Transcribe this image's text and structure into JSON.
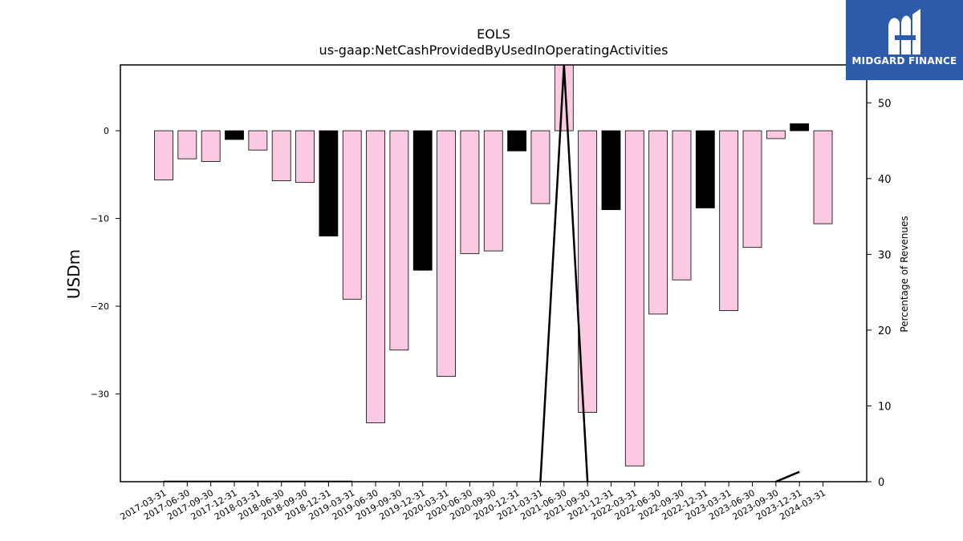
{
  "brand": {
    "name": "MIDGARD FINANCE",
    "logo_icon": "midgard-m-logo-icon",
    "background": "#2d5aab"
  },
  "chart_data": {
    "type": "bar",
    "title": "EOLS",
    "subtitle": "us-gaap:NetCashProvidedByUsedInOperatingActivities",
    "ylabel": "USDm",
    "y2label": "Percentage of Revenues",
    "ylim": [
      -40,
      7.5
    ],
    "y2lim": [
      0,
      55
    ],
    "yticks": [
      0,
      -10,
      -20,
      -30
    ],
    "y2ticks": [
      0,
      10,
      20,
      30,
      40,
      50
    ],
    "grid": false,
    "categories": [
      "2017-03-31",
      "2017-06-30",
      "2017-09-30",
      "2017-12-31",
      "2018-03-31",
      "2018-06-30",
      "2018-09-30",
      "2018-12-31",
      "2019-03-31",
      "2019-06-30",
      "2019-09-30",
      "2019-12-31",
      "2020-03-31",
      "2020-06-30",
      "2020-09-30",
      "2020-12-31",
      "2021-03-31",
      "2021-06-30",
      "2021-09-30",
      "2021-12-31",
      "2022-03-31",
      "2022-06-30",
      "2022-09-30",
      "2022-12-31",
      "2023-03-31",
      "2023-06-30",
      "2023-09-30",
      "2023-12-31",
      "2024-03-31"
    ],
    "values": [
      -5.6,
      -3.2,
      -3.5,
      -1.0,
      -2.2,
      -5.7,
      -5.9,
      -12.0,
      -19.2,
      -33.3,
      -25.0,
      -15.9,
      -28.0,
      -14.0,
      -13.7,
      -2.3,
      -8.3,
      8.0,
      -32.1,
      -9.0,
      -38.2,
      -20.9,
      -17.0,
      -8.8,
      -20.5,
      -13.3,
      -0.9,
      0.8,
      -10.6
    ],
    "bar_colors": [
      "#fbc9e2",
      "#fbc9e2",
      "#fbc9e2",
      "#000000",
      "#fbc9e2",
      "#fbc9e2",
      "#fbc9e2",
      "#000000",
      "#fbc9e2",
      "#fbc9e2",
      "#fbc9e2",
      "#000000",
      "#fbc9e2",
      "#fbc9e2",
      "#fbc9e2",
      "#000000",
      "#fbc9e2",
      "#fbc9e2",
      "#fbc9e2",
      "#000000",
      "#fbc9e2",
      "#fbc9e2",
      "#fbc9e2",
      "#000000",
      "#fbc9e2",
      "#fbc9e2",
      "#fbc9e2",
      "#000000",
      "#fbc9e2"
    ],
    "percent_line": {
      "name": "",
      "axis": "right",
      "values": [
        0,
        0,
        0,
        0,
        0,
        0,
        0,
        0,
        0,
        null,
        null,
        null,
        null,
        null,
        null,
        null,
        0,
        55,
        0,
        null,
        null,
        null,
        null,
        null,
        null,
        null,
        0,
        1.3,
        null
      ]
    }
  }
}
